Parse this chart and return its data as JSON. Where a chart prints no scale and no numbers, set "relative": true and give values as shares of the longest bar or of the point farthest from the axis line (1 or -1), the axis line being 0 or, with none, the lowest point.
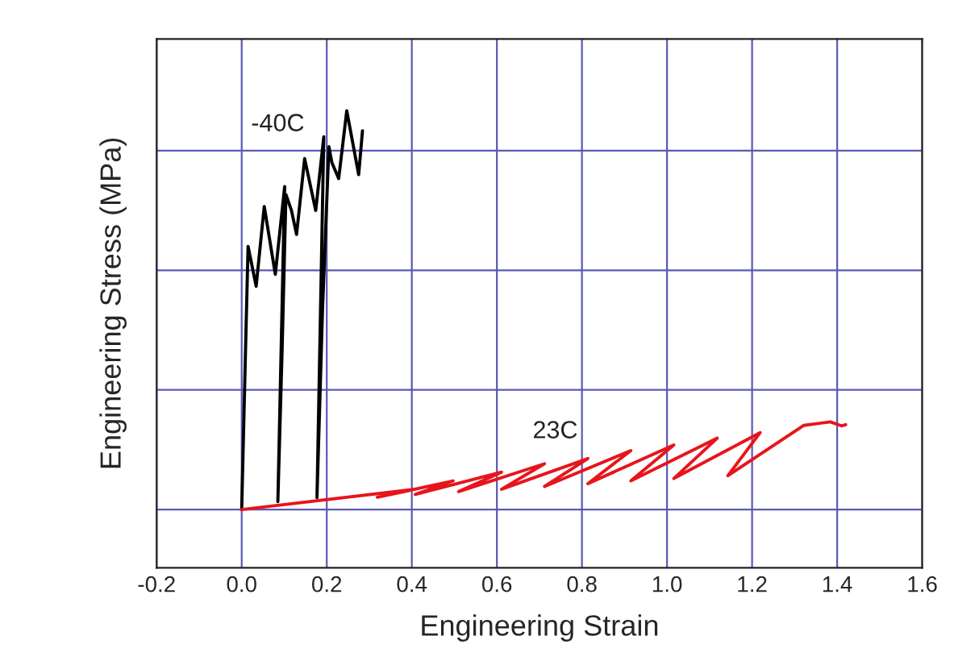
{
  "chart_data": {
    "type": "line",
    "xlabel": "Engineering Strain",
    "ylabel": "Engineering Stress (MPa)",
    "relative": true,
    "xlim": [
      -0.2,
      1.6
    ],
    "xticks": [
      -0.2,
      {
        "value": 0,
        "label": "0.0"
      },
      0.2,
      0.4,
      0.6,
      0.8,
      {
        "value": 1,
        "label": "1.0"
      },
      1.2,
      1.4,
      1.6
    ],
    "grid": true,
    "series": [
      {
        "name": "-40C",
        "color": "#000000",
        "x": [
          0,
          0.009,
          0.015,
          0.034,
          0.053,
          0.079,
          0.101,
          0.085,
          0.095,
          0.104,
          0.117,
          0.129,
          0.148,
          0.174,
          0.193,
          0.177,
          0.19,
          0.205,
          0.212,
          0.228,
          0.247,
          0.275,
          0.284
        ],
        "values": [
          0,
          0.4,
          0.66,
          0.56,
          0.76,
          0.59,
          0.81,
          0.02,
          0.4,
          0.79,
          0.75,
          0.69,
          0.88,
          0.75,
          0.935,
          0.03,
          0.5,
          0.91,
          0.87,
          0.83,
          1.0,
          0.84,
          0.95
        ]
      },
      {
        "name": "23C",
        "color": "#e8141c",
        "x": [
          0,
          0.408,
          0.319,
          0.497,
          0.408,
          0.611,
          0.51,
          0.712,
          0.611,
          0.814,
          0.712,
          0.915,
          0.814,
          1.016,
          0.915,
          1.118,
          1.016,
          1.219,
          1.143,
          1.321,
          1.384,
          1.41,
          1.42
        ],
        "values": [
          0,
          0.051,
          0.031,
          0.072,
          0.038,
          0.094,
          0.045,
          0.115,
          0.051,
          0.128,
          0.058,
          0.148,
          0.065,
          0.162,
          0.072,
          0.179,
          0.078,
          0.193,
          0.085,
          0.211,
          0.22,
          0.21,
          0.213
        ]
      }
    ]
  }
}
